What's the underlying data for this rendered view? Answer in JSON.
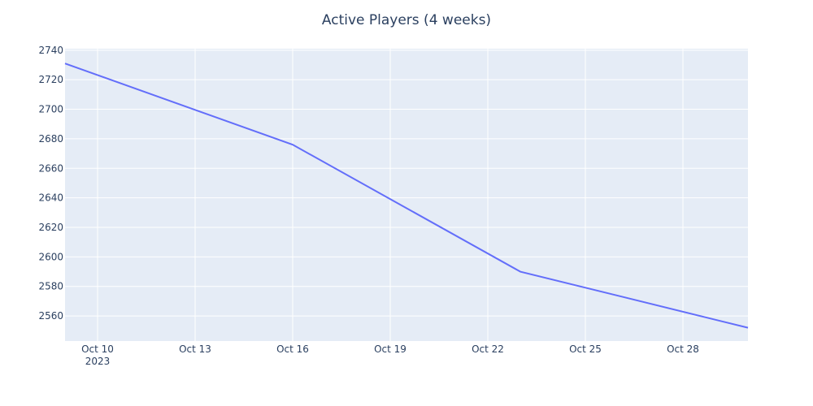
{
  "chart_data": {
    "type": "line",
    "title": "Active Players (4 weeks)",
    "xlabel": "",
    "ylabel": "",
    "grid": true,
    "line_color": "#636efa",
    "plot_bg_color": "#e5ecf6",
    "x_range": [
      "2023-10-09",
      "2023-10-30"
    ],
    "y_range": [
      2543,
      2741
    ],
    "x": [
      "2023-10-09",
      "2023-10-16",
      "2023-10-23",
      "2023-10-30"
    ],
    "y": [
      2731,
      2676,
      2590,
      2552
    ],
    "x_ticks": [
      {
        "date": "2023-10-10",
        "label": "Oct 10",
        "sublabel": "2023"
      },
      {
        "date": "2023-10-13",
        "label": "Oct 13"
      },
      {
        "date": "2023-10-16",
        "label": "Oct 16"
      },
      {
        "date": "2023-10-19",
        "label": "Oct 19"
      },
      {
        "date": "2023-10-22",
        "label": "Oct 22"
      },
      {
        "date": "2023-10-25",
        "label": "Oct 25"
      },
      {
        "date": "2023-10-28",
        "label": "Oct 28"
      }
    ],
    "y_ticks": [
      2560,
      2580,
      2600,
      2620,
      2640,
      2660,
      2680,
      2700,
      2720,
      2740
    ]
  }
}
